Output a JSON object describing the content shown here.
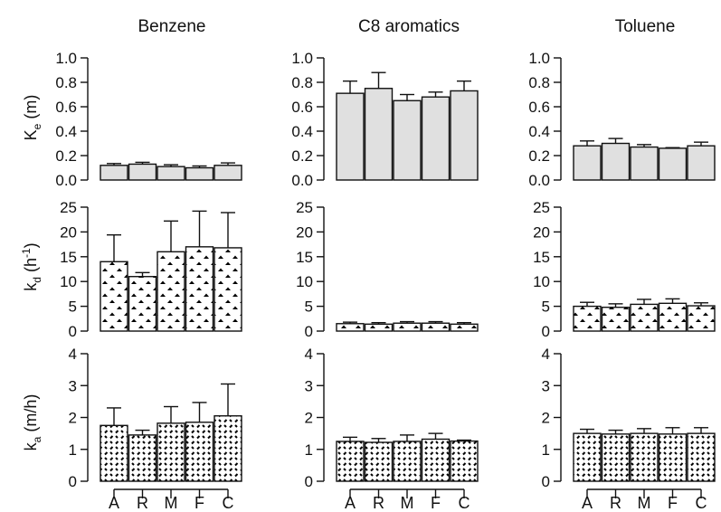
{
  "colors": {
    "bar_fill": "#e0e0e0",
    "stroke": "#111111",
    "pattern_fill": "#ffffff",
    "pattern_mark": "#000000"
  },
  "columns": [
    "Benzene",
    "C8 aromatics",
    "Toluene"
  ],
  "rows": [
    {
      "label": "K",
      "sub": "e",
      "rest": " (m)",
      "sup": "",
      "tail": "",
      "ylim": [
        0,
        1.0
      ],
      "ticks": [
        "0.0",
        "0.2",
        "0.4",
        "0.6",
        "0.8",
        "1.0"
      ],
      "pattern": "solid-gray"
    },
    {
      "label": "k",
      "sub": "d",
      "rest": " (h",
      "sup": "-1",
      "tail": ")",
      "ylim": [
        0,
        25
      ],
      "ticks": [
        "0",
        "5",
        "10",
        "15",
        "20",
        "25"
      ],
      "pattern": "chevrons"
    },
    {
      "label": "k",
      "sub": "a",
      "rest": " (m/h)",
      "sup": "",
      "tail": "",
      "ylim": [
        0,
        4
      ],
      "ticks": [
        "0",
        "1",
        "2",
        "3",
        "4"
      ],
      "pattern": "dashes"
    }
  ],
  "categories": [
    "A",
    "R",
    "M",
    "F",
    "C"
  ],
  "chart_data": [
    {
      "type": "bar",
      "title": "Benzene",
      "ylabel": "Ke (m)",
      "ylim": [
        0,
        1.0
      ],
      "categories": [
        "A",
        "R",
        "M",
        "F",
        "C"
      ],
      "values": [
        0.12,
        0.13,
        0.11,
        0.1,
        0.12
      ],
      "errors": [
        0.015,
        0.015,
        0.015,
        0.015,
        0.02
      ]
    },
    {
      "type": "bar",
      "title": "C8 aromatics",
      "ylabel": "Ke (m)",
      "ylim": [
        0,
        1.0
      ],
      "categories": [
        "A",
        "R",
        "M",
        "F",
        "C"
      ],
      "values": [
        0.71,
        0.75,
        0.65,
        0.68,
        0.73
      ],
      "errors": [
        0.1,
        0.13,
        0.05,
        0.04,
        0.08
      ]
    },
    {
      "type": "bar",
      "title": "Toluene",
      "ylabel": "Ke (m)",
      "ylim": [
        0,
        1.0
      ],
      "categories": [
        "A",
        "R",
        "M",
        "F",
        "C"
      ],
      "values": [
        0.28,
        0.3,
        0.27,
        0.26,
        0.28
      ],
      "errors": [
        0.04,
        0.04,
        0.02,
        0.005,
        0.03
      ]
    },
    {
      "type": "bar",
      "title": "Benzene",
      "ylabel": "kd (h-1)",
      "ylim": [
        0,
        25
      ],
      "categories": [
        "A",
        "R",
        "M",
        "F",
        "C"
      ],
      "values": [
        14.0,
        11.0,
        16.0,
        17.0,
        16.8
      ],
      "errors": [
        5.4,
        0.8,
        6.2,
        7.2,
        7.1
      ]
    },
    {
      "type": "bar",
      "title": "C8 aromatics",
      "ylabel": "kd (h-1)",
      "ylim": [
        0,
        25
      ],
      "categories": [
        "A",
        "R",
        "M",
        "F",
        "C"
      ],
      "values": [
        1.5,
        1.4,
        1.6,
        1.6,
        1.4
      ],
      "errors": [
        0.3,
        0.3,
        0.3,
        0.3,
        0.3
      ]
    },
    {
      "type": "bar",
      "title": "Toluene",
      "ylabel": "kd (h-1)",
      "ylim": [
        0,
        25
      ],
      "categories": [
        "A",
        "R",
        "M",
        "F",
        "C"
      ],
      "values": [
        5.0,
        4.8,
        5.4,
        5.6,
        5.1
      ],
      "errors": [
        0.8,
        0.7,
        1.0,
        0.9,
        0.6
      ]
    },
    {
      "type": "bar",
      "title": "Benzene",
      "ylabel": "ka (m/h)",
      "ylim": [
        0,
        4
      ],
      "categories": [
        "A",
        "R",
        "M",
        "F",
        "C"
      ],
      "values": [
        1.75,
        1.45,
        1.82,
        1.85,
        2.05
      ],
      "errors": [
        0.55,
        0.15,
        0.52,
        0.62,
        1.0
      ]
    },
    {
      "type": "bar",
      "title": "C8 aromatics",
      "ylabel": "ka (m/h)",
      "ylim": [
        0,
        4
      ],
      "categories": [
        "A",
        "R",
        "M",
        "F",
        "C"
      ],
      "values": [
        1.25,
        1.22,
        1.25,
        1.32,
        1.26
      ],
      "errors": [
        0.13,
        0.12,
        0.2,
        0.18,
        0.03
      ]
    },
    {
      "type": "bar",
      "title": "Toluene",
      "ylabel": "ka (m/h)",
      "ylim": [
        0,
        4
      ],
      "categories": [
        "A",
        "R",
        "M",
        "F",
        "C"
      ],
      "values": [
        1.5,
        1.48,
        1.5,
        1.48,
        1.5
      ],
      "errors": [
        0.13,
        0.12,
        0.15,
        0.2,
        0.18
      ]
    }
  ]
}
